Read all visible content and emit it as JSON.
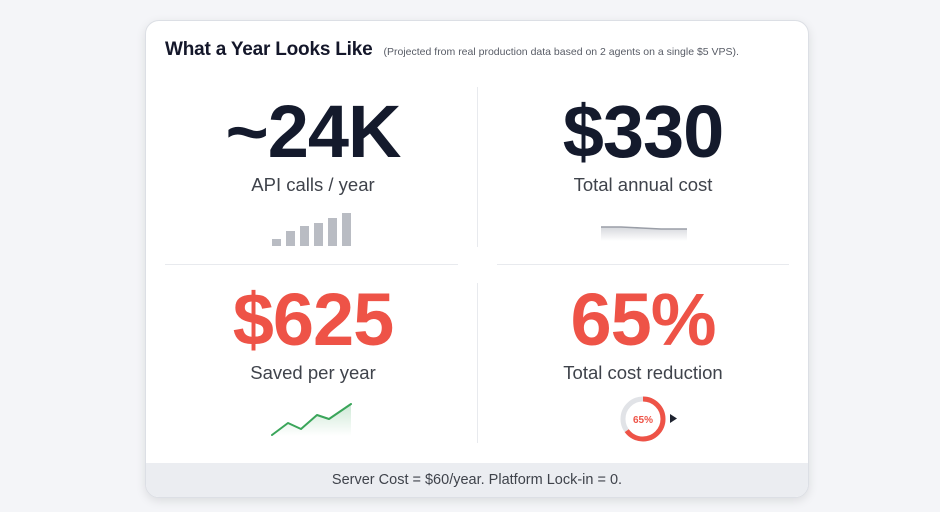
{
  "header": {
    "title": "What a Year Looks Like",
    "subtitle": "(Projected from real production data based on 2 agents on a single $5 VPS)."
  },
  "stats": {
    "api_calls": {
      "value": "~24K",
      "label": "API calls / year",
      "chart_icon": "bar-chart-icon"
    },
    "annual_cost": {
      "value": "$330",
      "label": "Total annual cost",
      "chart_icon": "flat-area-chart-icon"
    },
    "saved": {
      "value": "$625",
      "label": "Saved per year",
      "chart_icon": "rising-line-chart-icon"
    },
    "reduction": {
      "value": "65%",
      "label": "Total cost reduction",
      "ring_label": "65%",
      "ring_percent": 65,
      "chart_icon": "donut-chart-icon"
    }
  },
  "footer": {
    "text": "Server Cost = $60/year. Platform Lock-in = 0."
  },
  "colors": {
    "dark_text": "#141a2c",
    "accent_red": "#ee5347",
    "accent_green": "#3aa55a",
    "bar_gray": "#b9bcc3"
  }
}
